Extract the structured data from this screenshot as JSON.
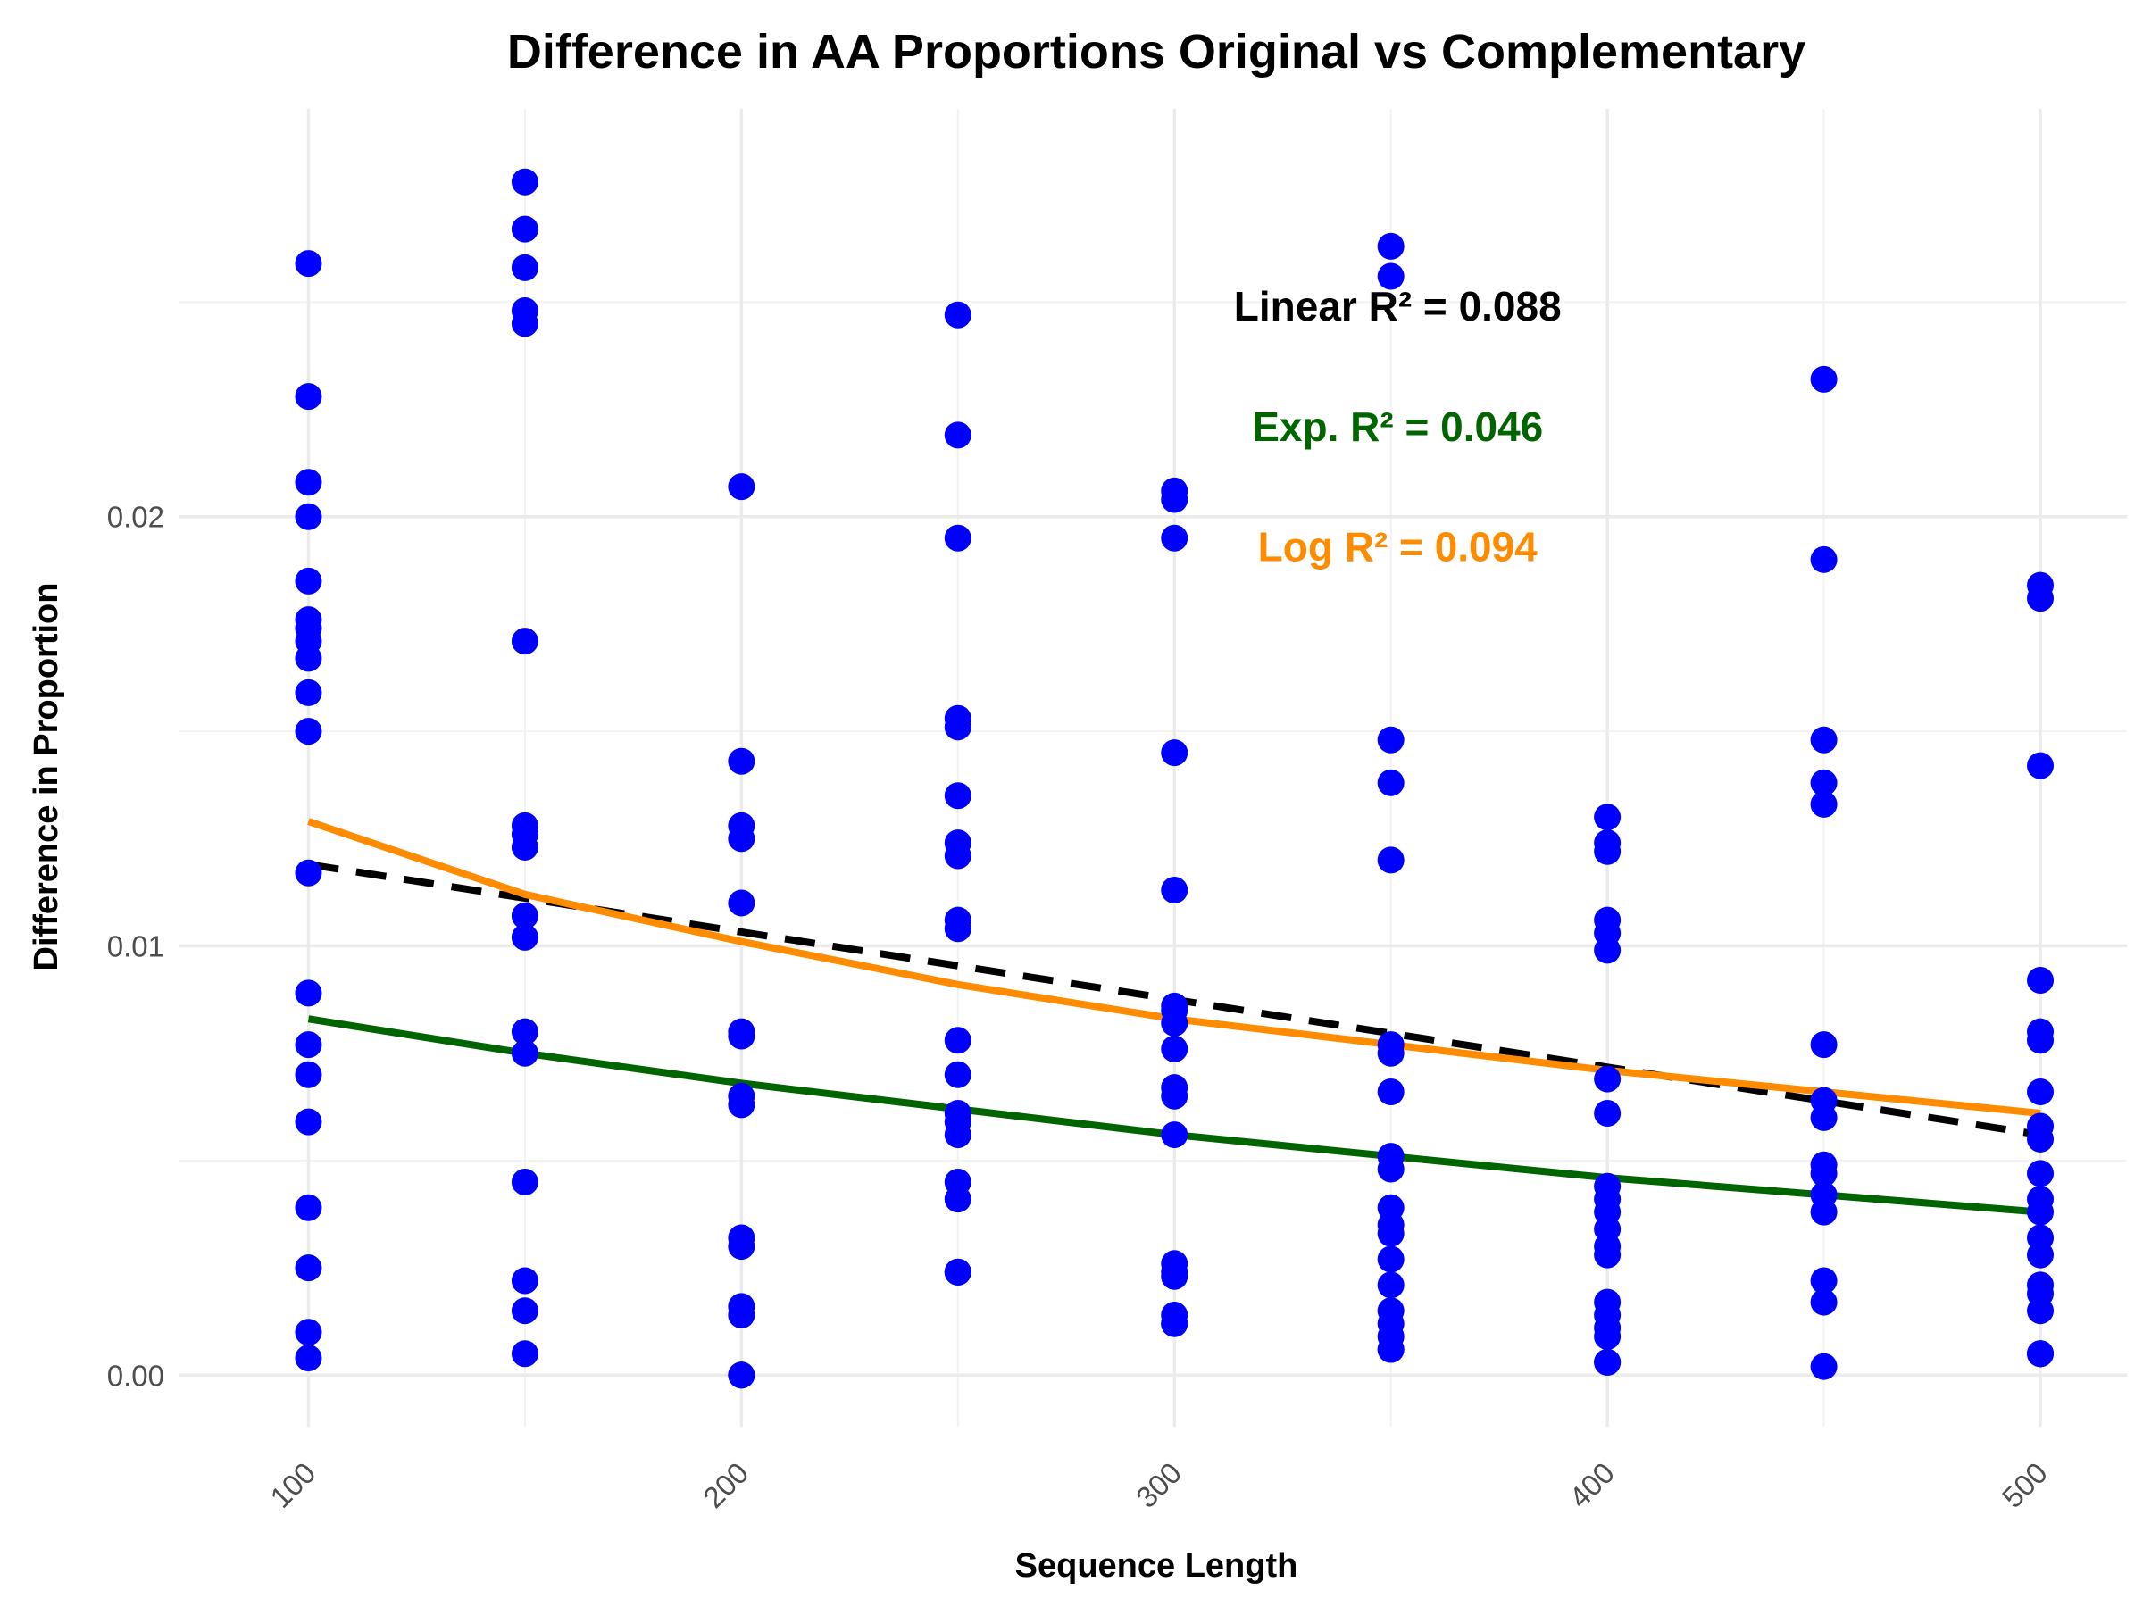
{
  "chart_data": {
    "type": "scatter",
    "title": "Difference in AA Proportions Original vs Complementary",
    "xlabel": "Sequence Length",
    "ylabel": "Difference in Proportion",
    "xlim": [
      70,
      520
    ],
    "ylim": [
      -0.0012,
      0.0295
    ],
    "x_ticks": [
      100,
      200,
      300,
      400,
      500
    ],
    "x_tick_labels": [
      "100",
      "200",
      "300",
      "400",
      "500"
    ],
    "y_ticks": [
      0.0,
      0.01,
      0.02
    ],
    "y_tick_labels": [
      "0.00",
      "0.01",
      "0.02"
    ],
    "grid": true,
    "legend": "none",
    "point_color": "#0000ff",
    "series": [
      {
        "type": "scatter",
        "x": [
          100,
          100,
          100,
          100,
          100,
          100,
          100,
          100,
          100,
          100,
          100,
          100,
          100,
          100,
          100,
          100,
          100,
          100,
          100,
          100,
          150,
          150,
          150,
          150,
          150,
          150,
          150,
          150,
          150,
          150,
          150,
          150,
          150,
          150,
          150,
          150,
          150,
          200,
          200,
          200,
          200,
          200,
          200,
          200,
          200,
          200,
          200,
          200,
          200,
          200,
          200,
          200,
          200,
          250,
          250,
          250,
          250,
          250,
          250,
          250,
          250,
          250,
          250,
          250,
          250,
          250,
          250,
          250,
          250,
          250,
          250,
          250,
          250,
          300,
          300,
          300,
          300,
          300,
          300,
          300,
          300,
          300,
          300,
          300,
          300,
          300,
          300,
          300,
          300,
          300,
          300,
          300,
          350,
          350,
          350,
          350,
          350,
          350,
          350,
          350,
          350,
          350,
          350,
          350,
          350,
          350,
          350,
          350,
          350,
          350,
          350,
          350,
          400,
          400,
          400,
          400,
          400,
          400,
          400,
          400,
          400,
          400,
          400,
          400,
          400,
          400,
          400,
          400,
          400,
          400,
          400,
          400,
          450,
          450,
          450,
          450,
          450,
          450,
          450,
          450,
          450,
          450,
          450,
          450,
          450,
          450,
          450,
          500,
          500,
          500,
          500,
          500,
          500,
          500,
          500,
          500,
          500,
          500,
          500,
          500,
          500,
          500,
          500,
          500,
          500,
          500,
          500
        ],
        "y": [
          0.0259,
          0.0228,
          0.0208,
          0.02,
          0.0185,
          0.0176,
          0.0174,
          0.0171,
          0.0167,
          0.0159,
          0.015,
          0.0117,
          0.0089,
          0.0077,
          0.007,
          0.0059,
          0.0039,
          0.0025,
          0.001,
          0.0004,
          0.0278,
          0.0267,
          0.0258,
          0.0248,
          0.0245,
          0.0171,
          0.0128,
          0.0126,
          0.0123,
          0.0107,
          0.0102,
          0.008,
          0.0075,
          0.0045,
          0.0022,
          0.0015,
          0.0005,
          0.0207,
          0.0143,
          0.0128,
          0.0125,
          0.011,
          0.008,
          0.0079,
          0.0065,
          0.0063,
          0.0032,
          0.003,
          0.0016,
          0.0014,
          0.0,
          0.0,
          0.0,
          0.0247,
          0.0219,
          0.0195,
          0.0153,
          0.0151,
          0.0135,
          0.0124,
          0.0121,
          0.0106,
          0.0104,
          0.0078,
          0.007,
          0.0061,
          0.0059,
          0.0056,
          0.0045,
          0.0041,
          0.0024,
          0.0024,
          0.0024,
          0.0206,
          0.0204,
          0.0195,
          0.0145,
          0.0113,
          0.0086,
          0.0085,
          0.0082,
          0.0076,
          0.0067,
          0.0065,
          0.0056,
          0.0026,
          0.0024,
          0.0023,
          0.0014,
          0.0012,
          0.0012,
          0.0012,
          0.0263,
          0.0256,
          0.0148,
          0.0138,
          0.012,
          0.0077,
          0.0075,
          0.0066,
          0.0051,
          0.0048,
          0.0039,
          0.0035,
          0.0033,
          0.0027,
          0.0021,
          0.0015,
          0.0012,
          0.0009,
          0.0006,
          0.0006,
          0.013,
          0.0124,
          0.0122,
          0.0106,
          0.0103,
          0.0099,
          0.0069,
          0.0061,
          0.0044,
          0.0041,
          0.0038,
          0.0034,
          0.003,
          0.0028,
          0.0017,
          0.0014,
          0.0011,
          0.0009,
          0.0003,
          0.0003,
          0.0232,
          0.019,
          0.0148,
          0.0138,
          0.0133,
          0.0077,
          0.0064,
          0.006,
          0.0049,
          0.0047,
          0.0042,
          0.0038,
          0.0022,
          0.0017,
          0.0002,
          0.0184,
          0.0181,
          0.0142,
          0.0092,
          0.008,
          0.0078,
          0.0066,
          0.0058,
          0.0055,
          0.0047,
          0.0041,
          0.0038,
          0.0032,
          0.0028,
          0.0021,
          0.0019,
          0.0015,
          0.0005,
          0.0005,
          0.0005
        ]
      },
      {
        "name": "Linear",
        "type": "line",
        "color": "#000000",
        "dash": true,
        "x": [
          100,
          500
        ],
        "y": [
          0.0119,
          0.0056
        ]
      },
      {
        "name": "Exp.",
        "type": "line",
        "color": "#006400",
        "x": [
          100,
          150,
          200,
          250,
          300,
          350,
          400,
          450,
          500
        ],
        "y": [
          0.0083,
          0.0075,
          0.0068,
          0.0062,
          0.0056,
          0.0051,
          0.0046,
          0.0042,
          0.0038
        ]
      },
      {
        "name": "Log",
        "type": "line",
        "color": "#ff8c00",
        "x": [
          100,
          150,
          200,
          250,
          300,
          350,
          400,
          450,
          500
        ],
        "y": [
          0.0129,
          0.0112,
          0.0101,
          0.0091,
          0.0083,
          0.0077,
          0.0071,
          0.0066,
          0.0061
        ]
      }
    ],
    "annotations": [
      {
        "text": "Linear R² = 0.088",
        "color": "#000000",
        "x": 300,
        "y": 0.0249
      },
      {
        "text": "Exp. R² = 0.046",
        "color": "#006400",
        "x": 300,
        "y": 0.0221
      },
      {
        "text": "Log R² = 0.094",
        "color": "#ff8c00",
        "x": 300,
        "y": 0.0193
      }
    ]
  }
}
